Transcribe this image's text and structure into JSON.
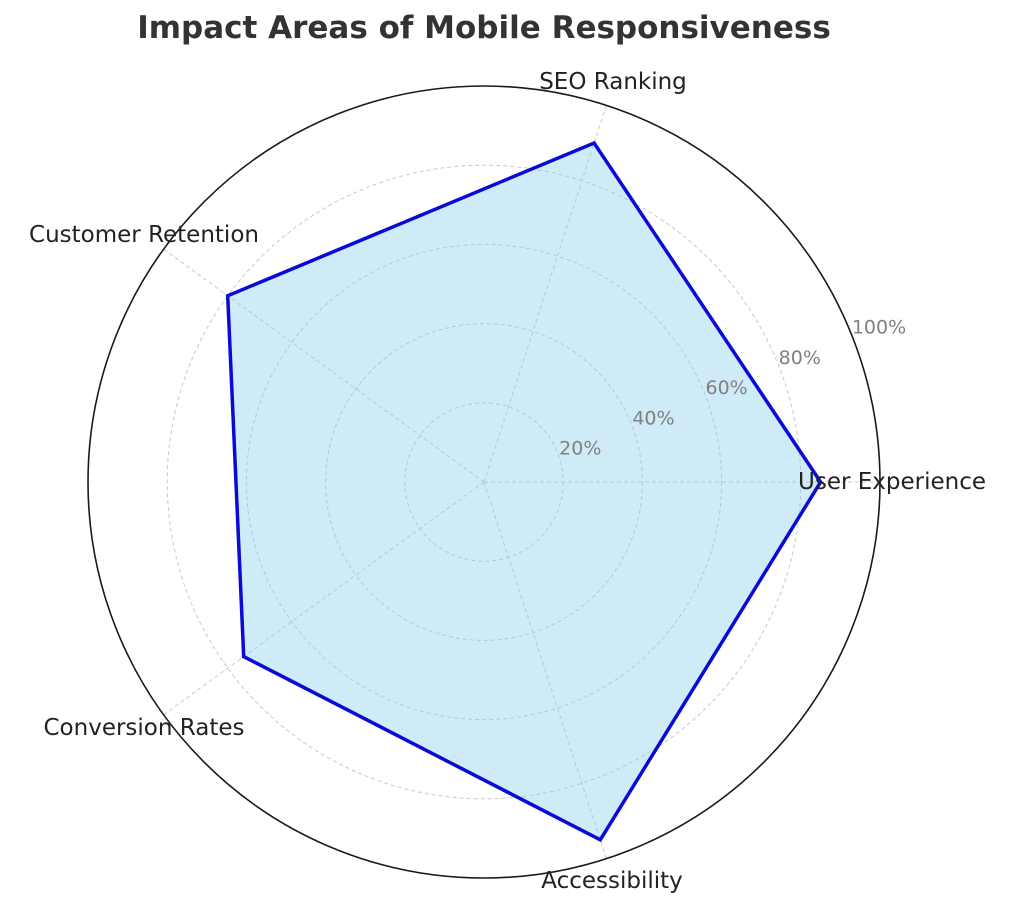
{
  "chart_data": {
    "type": "radar",
    "title": "Impact Areas of Mobile Responsiveness",
    "categories": [
      "User Experience",
      "SEO Ranking",
      "Customer Retention",
      "Conversion Rates",
      "Accessibility"
    ],
    "series": [
      {
        "values": [
          85,
          90,
          80,
          75,
          95
        ]
      }
    ],
    "rlim": [
      0,
      100
    ],
    "r_ticks": [
      20,
      40,
      60,
      80,
      100
    ],
    "r_tick_labels": [
      "20%",
      "40%",
      "60%",
      "80%",
      "100%"
    ],
    "grid": true,
    "colors": {
      "line": "#0a0ad6",
      "fill": "#87ceeb",
      "outer_ring": "#1a1a1a"
    }
  }
}
